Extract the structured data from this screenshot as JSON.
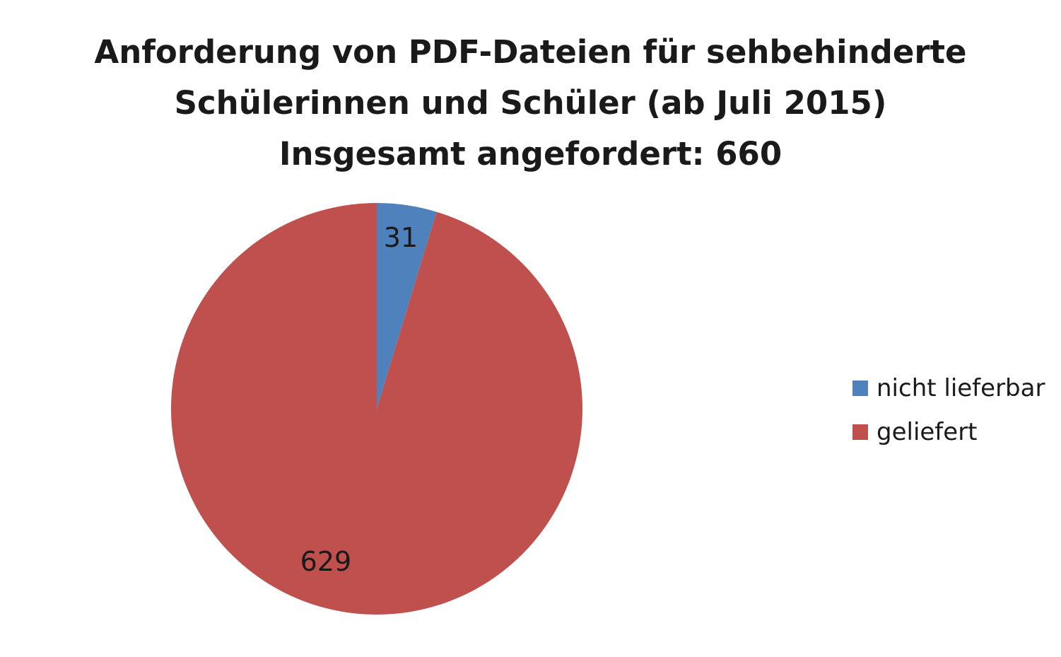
{
  "chart_data": {
    "type": "pie",
    "title_lines": [
      "Anforderung von PDF-Dateien für sehbehinderte",
      "Schülerinnen und Schüler (ab Juli 2015)",
      "Insgesamt angefordert: 660"
    ],
    "categories": [
      "nicht lieferbar",
      "geliefert"
    ],
    "values": [
      31,
      629
    ],
    "data_labels": [
      "31",
      "629"
    ],
    "colors": [
      "#4f81bd",
      "#c0504d"
    ],
    "legend_position": "right",
    "start_angle_deg": 0,
    "direction": "clockwise"
  }
}
